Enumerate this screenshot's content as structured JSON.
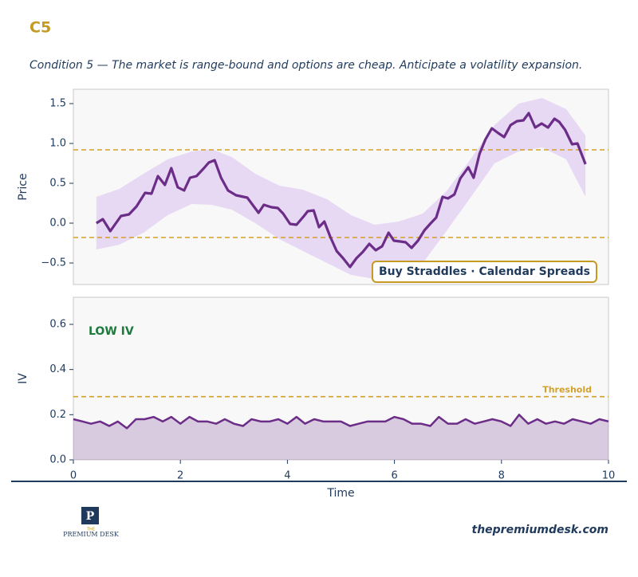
{
  "header": {
    "title": "C5",
    "subtitle": "Condition 5 — The market is range-bound and options are cheap. Anticipate a volatility expansion."
  },
  "chart_data": [
    {
      "type": "line",
      "ylabel": "Price",
      "xlim": [
        0,
        10
      ],
      "ylim": [
        -0.77,
        1.68
      ],
      "yticks": [
        {
          "value": -0.5,
          "label": "−0.5"
        },
        {
          "value": 0,
          "label": "0.0"
        },
        {
          "value": 0.5,
          "label": "0.5"
        },
        {
          "value": 1,
          "label": "1.0"
        },
        {
          "value": 1.5,
          "label": "1.5"
        }
      ],
      "x": [
        0.43,
        0.55,
        0.69,
        0.89,
        1.04,
        1.18,
        1.34,
        1.46,
        1.58,
        1.71,
        1.83,
        1.95,
        2.07,
        2.18,
        2.3,
        2.44,
        2.53,
        2.64,
        2.76,
        2.89,
        3.04,
        3.25,
        3.46,
        3.56,
        3.7,
        3.82,
        3.92,
        4.05,
        4.17,
        4.31,
        4.38,
        4.49,
        4.59,
        4.69,
        4.8,
        4.92,
        5.04,
        5.17,
        5.29,
        5.41,
        5.53,
        5.65,
        5.77,
        5.89,
        5.99,
        6.11,
        6.21,
        6.32,
        6.44,
        6.56,
        6.68,
        6.78,
        6.9,
        7.0,
        7.12,
        7.23,
        7.38,
        7.48,
        7.59,
        7.7,
        7.82,
        7.94,
        8.05,
        8.17,
        8.29,
        8.41,
        8.51,
        8.63,
        8.75,
        8.87,
        8.99,
        9.08,
        9.19,
        9.32,
        9.42,
        9.57
      ],
      "series": [
        {
          "color": "#6b2d87",
          "values": [
            0.0,
            0.05,
            -0.1,
            0.09,
            0.11,
            0.21,
            0.38,
            0.37,
            0.59,
            0.48,
            0.69,
            0.45,
            0.41,
            0.57,
            0.59,
            0.69,
            0.76,
            0.79,
            0.57,
            0.41,
            0.35,
            0.32,
            0.13,
            0.23,
            0.2,
            0.19,
            0.12,
            -0.01,
            -0.02,
            0.09,
            0.15,
            0.16,
            -0.05,
            0.02,
            -0.17,
            -0.35,
            -0.44,
            -0.55,
            -0.44,
            -0.36,
            -0.26,
            -0.34,
            -0.29,
            -0.12,
            -0.22,
            -0.23,
            -0.24,
            -0.31,
            -0.22,
            -0.09,
            0.0,
            0.07,
            0.33,
            0.31,
            0.36,
            0.56,
            0.7,
            0.57,
            0.87,
            1.05,
            1.19,
            1.13,
            1.08,
            1.23,
            1.28,
            1.29,
            1.38,
            1.2,
            1.25,
            1.2,
            1.31,
            1.27,
            1.17,
            0.99,
            1.0,
            0.74
          ]
        }
      ],
      "band": {
        "color": "#e2cdf2",
        "x": [
          0.43,
          0.86,
          1.31,
          1.76,
          2.21,
          2.58,
          2.96,
          3.4,
          3.85,
          4.29,
          4.74,
          5.19,
          5.63,
          6.08,
          6.53,
          6.97,
          7.42,
          7.87,
          8.32,
          8.76,
          9.21,
          9.57
        ],
        "upper": [
          0.33,
          0.43,
          0.62,
          0.8,
          0.9,
          0.93,
          0.83,
          0.62,
          0.47,
          0.42,
          0.3,
          0.1,
          -0.02,
          0.02,
          0.12,
          0.4,
          0.8,
          1.23,
          1.5,
          1.57,
          1.43,
          1.1
        ],
        "lower": [
          -0.33,
          -0.27,
          -0.12,
          0.1,
          0.24,
          0.23,
          0.17,
          0.0,
          -0.2,
          -0.35,
          -0.5,
          -0.65,
          -0.7,
          -0.68,
          -0.5,
          -0.1,
          0.32,
          0.75,
          0.9,
          0.95,
          0.8,
          0.33
        ]
      },
      "hlines": [
        {
          "value": 0.92,
          "color": "#d4a02a"
        },
        {
          "value": -0.18,
          "color": "#d4a02a"
        }
      ],
      "annotation": "Buy Straddles · Calendar Spreads"
    },
    {
      "type": "area",
      "ylabel": "IV",
      "xlabel": "Time",
      "color": "#6b2d87",
      "xlim": [
        0,
        10
      ],
      "ylim": [
        0,
        0.72
      ],
      "xticks": [
        0,
        2,
        4,
        6,
        8,
        10
      ],
      "yticks": [
        {
          "value": 0,
          "label": "0.0"
        },
        {
          "value": 0.2,
          "label": "0.2"
        },
        {
          "value": 0.4,
          "label": "0.4"
        },
        {
          "value": 0.6,
          "label": "0.6"
        }
      ],
      "x": [
        0,
        0.17,
        0.33,
        0.5,
        0.67,
        0.83,
        1,
        1.17,
        1.33,
        1.5,
        1.67,
        1.83,
        2,
        2.17,
        2.33,
        2.5,
        2.67,
        2.83,
        3,
        3.17,
        3.33,
        3.5,
        3.67,
        3.83,
        4,
        4.17,
        4.33,
        4.5,
        4.67,
        4.83,
        5,
        5.17,
        5.33,
        5.5,
        5.67,
        5.83,
        6,
        6.17,
        6.33,
        6.5,
        6.67,
        6.83,
        7,
        7.17,
        7.33,
        7.5,
        7.67,
        7.83,
        8,
        8.17,
        8.33,
        8.5,
        8.67,
        8.83,
        9,
        9.17,
        9.33,
        9.5,
        9.67,
        9.83,
        10
      ],
      "values": [
        0.18,
        0.17,
        0.16,
        0.17,
        0.15,
        0.17,
        0.14,
        0.18,
        0.18,
        0.19,
        0.17,
        0.19,
        0.16,
        0.19,
        0.17,
        0.17,
        0.16,
        0.18,
        0.16,
        0.15,
        0.18,
        0.17,
        0.17,
        0.18,
        0.16,
        0.19,
        0.16,
        0.18,
        0.17,
        0.17,
        0.17,
        0.15,
        0.16,
        0.17,
        0.17,
        0.17,
        0.19,
        0.18,
        0.16,
        0.16,
        0.15,
        0.19,
        0.16,
        0.16,
        0.18,
        0.16,
        0.17,
        0.18,
        0.17,
        0.15,
        0.2,
        0.16,
        0.18,
        0.16,
        0.17,
        0.16,
        0.18,
        0.17,
        0.16,
        0.18,
        0.17
      ],
      "threshold": {
        "value": 0.28,
        "label": "Threshold",
        "color": "#d4a02a"
      },
      "annotation": "LOW IV",
      "annotation_color": "#1e7a3c"
    }
  ],
  "footer": {
    "logo_top": "THE",
    "logo_text": "PREMIUM DESK",
    "url": "thepremiumdesk.com"
  }
}
